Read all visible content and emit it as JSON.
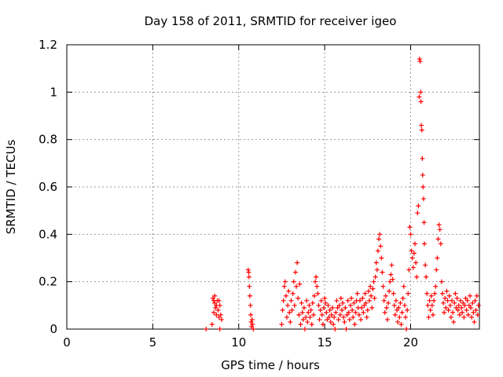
{
  "chart_data": {
    "type": "scatter",
    "title": "Day 158 of 2011, SRMTID for receiver igeo",
    "xlabel": "GPS time / hours",
    "ylabel": "SRMTID / TECUs",
    "xlim": [
      0,
      24
    ],
    "ylim": [
      0,
      1.2
    ],
    "x_ticks": [
      0,
      5,
      10,
      15,
      20
    ],
    "y_ticks": [
      0,
      0.2,
      0.4,
      0.6,
      0.8,
      1,
      1.2
    ],
    "x_tick_labels": [
      "0",
      "5",
      "10",
      "15",
      "20"
    ],
    "y_tick_labels": [
      "0",
      "0.2",
      "0.4",
      "0.6",
      "0.8",
      "1",
      "1.2"
    ],
    "grid": true,
    "marker": "+",
    "series": [
      {
        "name": "igeo",
        "color": "#ff0000",
        "points": [
          [
            8.1,
            0.0
          ],
          [
            8.45,
            0.02
          ],
          [
            8.5,
            0.13
          ],
          [
            8.55,
            0.12
          ],
          [
            8.6,
            0.11
          ],
          [
            8.6,
            0.14
          ],
          [
            8.65,
            0.09
          ],
          [
            8.7,
            0.06
          ],
          [
            8.75,
            0.12
          ],
          [
            8.8,
            0.08
          ],
          [
            8.85,
            0.05
          ],
          [
            8.9,
            0.1
          ],
          [
            8.95,
            0.06
          ],
          [
            9.0,
            0.04
          ],
          [
            8.55,
            0.07
          ],
          [
            8.7,
            0.1
          ],
          [
            8.85,
            0.12
          ],
          [
            8.9,
            0.0
          ],
          [
            10.55,
            0.25
          ],
          [
            10.58,
            0.24
          ],
          [
            10.6,
            0.22
          ],
          [
            10.62,
            0.18
          ],
          [
            10.65,
            0.14
          ],
          [
            10.68,
            0.1
          ],
          [
            10.7,
            0.06
          ],
          [
            10.72,
            0.03
          ],
          [
            10.75,
            0.01
          ],
          [
            10.78,
            0.04
          ],
          [
            10.8,
            0.02
          ],
          [
            10.85,
            0.0
          ],
          [
            12.5,
            0.02
          ],
          [
            12.55,
            0.08
          ],
          [
            12.6,
            0.12
          ],
          [
            12.65,
            0.18
          ],
          [
            12.7,
            0.2
          ],
          [
            12.75,
            0.14
          ],
          [
            12.8,
            0.05
          ],
          [
            12.85,
            0.1
          ],
          [
            12.9,
            0.16
          ],
          [
            12.95,
            0.07
          ],
          [
            13.0,
            0.03
          ],
          [
            13.05,
            0.12
          ],
          [
            13.1,
            0.08
          ],
          [
            13.15,
            0.15
          ],
          [
            13.2,
            0.2
          ],
          [
            13.25,
            0.1
          ],
          [
            13.3,
            0.24
          ],
          [
            13.35,
            0.18
          ],
          [
            13.4,
            0.28
          ],
          [
            13.45,
            0.13
          ],
          [
            13.5,
            0.06
          ],
          [
            13.55,
            0.19
          ],
          [
            13.6,
            0.02
          ],
          [
            13.65,
            0.11
          ],
          [
            13.7,
            0.07
          ],
          [
            13.75,
            0.04
          ],
          [
            13.8,
            0.09
          ],
          [
            13.85,
            0.0
          ],
          [
            13.9,
            0.05
          ],
          [
            13.95,
            0.12
          ],
          [
            14.0,
            0.03
          ],
          [
            14.05,
            0.07
          ],
          [
            14.1,
            0.1
          ],
          [
            14.15,
            0.05
          ],
          [
            14.2,
            0.08
          ],
          [
            14.25,
            0.02
          ],
          [
            14.3,
            0.11
          ],
          [
            14.35,
            0.06
          ],
          [
            14.4,
            0.14
          ],
          [
            14.45,
            0.2
          ],
          [
            14.5,
            0.22
          ],
          [
            14.55,
            0.18
          ],
          [
            14.6,
            0.15
          ],
          [
            14.65,
            0.1
          ],
          [
            14.7,
            0.04
          ],
          [
            14.75,
            0.08
          ],
          [
            14.8,
            0.12
          ],
          [
            14.85,
            0.06
          ],
          [
            14.9,
            0.02
          ],
          [
            14.95,
            0.09
          ],
          [
            15.0,
            0.13
          ],
          [
            15.05,
            0.11
          ],
          [
            15.1,
            0.07
          ],
          [
            15.15,
            0.04
          ],
          [
            15.2,
            0.1
          ],
          [
            15.25,
            0.05
          ],
          [
            15.3,
            0.08
          ],
          [
            15.35,
            0.03
          ],
          [
            15.4,
            0.06
          ],
          [
            15.45,
            0.09
          ],
          [
            15.5,
            0.02
          ],
          [
            15.55,
            0.05
          ],
          [
            15.6,
            0.0
          ],
          [
            15.65,
            0.07
          ],
          [
            15.7,
            0.12
          ],
          [
            15.75,
            0.09
          ],
          [
            15.8,
            0.04
          ],
          [
            15.85,
            0.1
          ],
          [
            15.9,
            0.06
          ],
          [
            15.95,
            0.13
          ],
          [
            16.0,
            0.08
          ],
          [
            16.05,
            0.11
          ],
          [
            16.1,
            0.05
          ],
          [
            16.15,
            0.03
          ],
          [
            16.2,
            0.09
          ],
          [
            16.25,
            0.0
          ],
          [
            16.3,
            0.06
          ],
          [
            16.35,
            0.12
          ],
          [
            16.4,
            0.07
          ],
          [
            16.45,
            0.04
          ],
          [
            16.5,
            0.1
          ],
          [
            16.55,
            0.13
          ],
          [
            16.6,
            0.08
          ],
          [
            16.65,
            0.05
          ],
          [
            16.7,
            0.11
          ],
          [
            16.75,
            0.02
          ],
          [
            16.8,
            0.07
          ],
          [
            16.85,
            0.12
          ],
          [
            16.9,
            0.15
          ],
          [
            16.95,
            0.09
          ],
          [
            17.0,
            0.06
          ],
          [
            17.05,
            0.12
          ],
          [
            17.1,
            0.04
          ],
          [
            17.15,
            0.09
          ],
          [
            17.2,
            0.13
          ],
          [
            17.25,
            0.07
          ],
          [
            17.3,
            0.1
          ],
          [
            17.35,
            0.15
          ],
          [
            17.4,
            0.11
          ],
          [
            17.45,
            0.05
          ],
          [
            17.5,
            0.08
          ],
          [
            17.55,
            0.16
          ],
          [
            17.6,
            0.12
          ],
          [
            17.65,
            0.18
          ],
          [
            17.7,
            0.14
          ],
          [
            17.75,
            0.09
          ],
          [
            17.8,
            0.17
          ],
          [
            17.85,
            0.2
          ],
          [
            17.9,
            0.13
          ],
          [
            17.95,
            0.22
          ],
          [
            18.0,
            0.28
          ],
          [
            18.05,
            0.25
          ],
          [
            18.1,
            0.33
          ],
          [
            18.15,
            0.38
          ],
          [
            18.2,
            0.4
          ],
          [
            18.25,
            0.35
          ],
          [
            18.3,
            0.3
          ],
          [
            18.35,
            0.24
          ],
          [
            18.4,
            0.18
          ],
          [
            18.45,
            0.12
          ],
          [
            18.5,
            0.07
          ],
          [
            18.55,
            0.14
          ],
          [
            18.6,
            0.09
          ],
          [
            18.65,
            0.04
          ],
          [
            18.7,
            0.11
          ],
          [
            18.75,
            0.16
          ],
          [
            18.8,
            0.2
          ],
          [
            18.85,
            0.23
          ],
          [
            18.9,
            0.27
          ],
          [
            18.95,
            0.21
          ],
          [
            19.0,
            0.15
          ],
          [
            19.05,
            0.1
          ],
          [
            19.1,
            0.06
          ],
          [
            19.15,
            0.12
          ],
          [
            19.2,
            0.08
          ],
          [
            19.25,
            0.03
          ],
          [
            19.3,
            0.09
          ],
          [
            19.35,
            0.05
          ],
          [
            19.4,
            0.11
          ],
          [
            19.45,
            0.02
          ],
          [
            19.5,
            0.07
          ],
          [
            19.55,
            0.13
          ],
          [
            19.6,
            0.18
          ],
          [
            19.65,
            0.1
          ],
          [
            19.7,
            0.05
          ],
          [
            19.75,
            0.0
          ],
          [
            19.8,
            0.08
          ],
          [
            19.85,
            0.15
          ],
          [
            19.9,
            0.25
          ],
          [
            19.95,
            0.43
          ],
          [
            20.0,
            0.4
          ],
          [
            20.05,
            0.33
          ],
          [
            20.1,
            0.3
          ],
          [
            20.15,
            0.26
          ],
          [
            20.2,
            0.32
          ],
          [
            20.25,
            0.36
          ],
          [
            20.3,
            0.28
          ],
          [
            20.35,
            0.22
          ],
          [
            20.4,
            0.49
          ],
          [
            20.45,
            0.52
          ],
          [
            20.5,
            0.98
          ],
          [
            20.52,
            1.14
          ],
          [
            20.55,
            1.13
          ],
          [
            20.58,
            1.0
          ],
          [
            20.6,
            0.96
          ],
          [
            20.62,
            0.86
          ],
          [
            20.65,
            0.84
          ],
          [
            20.68,
            0.72
          ],
          [
            20.7,
            0.65
          ],
          [
            20.72,
            0.6
          ],
          [
            20.75,
            0.55
          ],
          [
            20.78,
            0.45
          ],
          [
            20.8,
            0.36
          ],
          [
            20.85,
            0.27
          ],
          [
            20.9,
            0.22
          ],
          [
            20.95,
            0.15
          ],
          [
            21.0,
            0.1
          ],
          [
            21.05,
            0.05
          ],
          [
            21.1,
            0.12
          ],
          [
            21.15,
            0.08
          ],
          [
            21.2,
            0.14
          ],
          [
            21.25,
            0.1
          ],
          [
            21.3,
            0.06
          ],
          [
            21.35,
            0.12
          ],
          [
            21.4,
            0.15
          ],
          [
            21.45,
            0.18
          ],
          [
            21.5,
            0.25
          ],
          [
            21.55,
            0.3
          ],
          [
            21.6,
            0.38
          ],
          [
            21.65,
            0.44
          ],
          [
            21.7,
            0.42
          ],
          [
            21.75,
            0.36
          ],
          [
            21.8,
            0.2
          ],
          [
            21.85,
            0.15
          ],
          [
            21.9,
            0.11
          ],
          [
            21.95,
            0.07
          ],
          [
            22.0,
            0.13
          ],
          [
            22.05,
            0.09
          ],
          [
            22.1,
            0.16
          ],
          [
            22.15,
            0.12
          ],
          [
            22.2,
            0.08
          ],
          [
            22.25,
            0.14
          ],
          [
            22.3,
            0.1
          ],
          [
            22.35,
            0.05
          ],
          [
            22.4,
            0.12
          ],
          [
            22.45,
            0.07
          ],
          [
            22.5,
            0.03
          ],
          [
            22.55,
            0.11
          ],
          [
            22.6,
            0.15
          ],
          [
            22.65,
            0.09
          ],
          [
            22.7,
            0.13
          ],
          [
            22.75,
            0.08
          ],
          [
            22.8,
            0.1
          ],
          [
            22.85,
            0.06
          ],
          [
            22.9,
            0.12
          ],
          [
            22.95,
            0.09
          ],
          [
            23.0,
            0.07
          ],
          [
            23.05,
            0.11
          ],
          [
            23.1,
            0.05
          ],
          [
            23.15,
            0.1
          ],
          [
            23.2,
            0.13
          ],
          [
            23.25,
            0.08
          ],
          [
            23.3,
            0.12
          ],
          [
            23.35,
            0.06
          ],
          [
            23.4,
            0.1
          ],
          [
            23.45,
            0.14
          ],
          [
            23.5,
            0.09
          ],
          [
            23.55,
            0.05
          ],
          [
            23.6,
            0.11
          ],
          [
            23.65,
            0.07
          ],
          [
            23.7,
            0.03
          ],
          [
            23.75,
            0.12
          ],
          [
            23.8,
            0.08
          ],
          [
            23.85,
            0.14
          ],
          [
            23.9,
            0.06
          ],
          [
            23.95,
            0.1
          ]
        ]
      }
    ]
  }
}
